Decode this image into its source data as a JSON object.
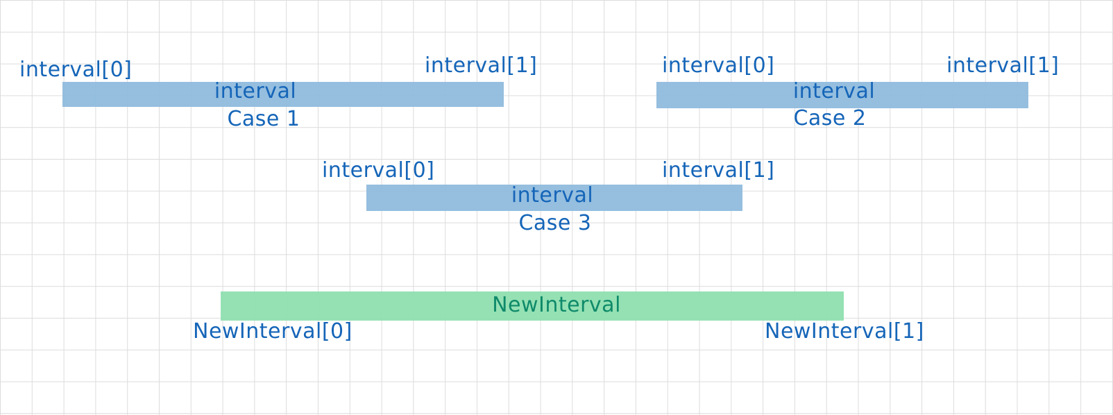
{
  "colors": {
    "interval_bar": "#8fbadd",
    "new_interval_bar": "#8fdfb0",
    "label_text": "#1565b8",
    "new_interval_text": "#0f8a6a",
    "grid_line": "#dcdcdc"
  },
  "cases": [
    {
      "start_label": "interval[0]",
      "end_label": "interval[1]",
      "bar_label": "interval",
      "case_label": "Case 1"
    },
    {
      "start_label": "interval[0]",
      "end_label": "interval[1]",
      "bar_label": "interval",
      "case_label": "Case 2"
    },
    {
      "start_label": "interval[0]",
      "end_label": "interval[1]",
      "bar_label": "interval",
      "case_label": "Case 3"
    }
  ],
  "new_interval": {
    "bar_label": "NewInterval",
    "start_label": "NewInterval[0]",
    "end_label": "NewInterval[1]"
  }
}
